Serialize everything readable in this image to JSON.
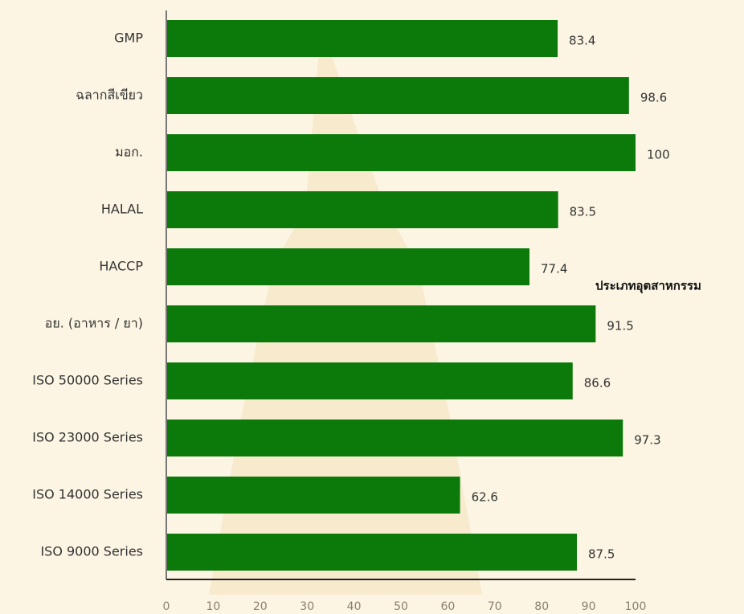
{
  "chart_data": {
    "type": "hbar",
    "annotation": "ประเภทอุตสาหกรรม",
    "categories": [
      "GMP",
      "ฉลากสีเขียว",
      "มอก.",
      "HALAL",
      "HACCP",
      "อย. (อาหาร / ยา)",
      "ISO 50000 Series",
      "ISO 23000 Series",
      "ISO 14000 Series",
      "ISO 9000 Series"
    ],
    "values": [
      83.4,
      98.6,
      100,
      83.5,
      77.4,
      91.5,
      86.6,
      97.3,
      62.6,
      87.5
    ],
    "color": "#0b7a0b",
    "xlim": [
      0,
      100
    ],
    "xticks": [
      0,
      10,
      20,
      30,
      40,
      50,
      60,
      70,
      80,
      90,
      100
    ],
    "grid": false
  }
}
